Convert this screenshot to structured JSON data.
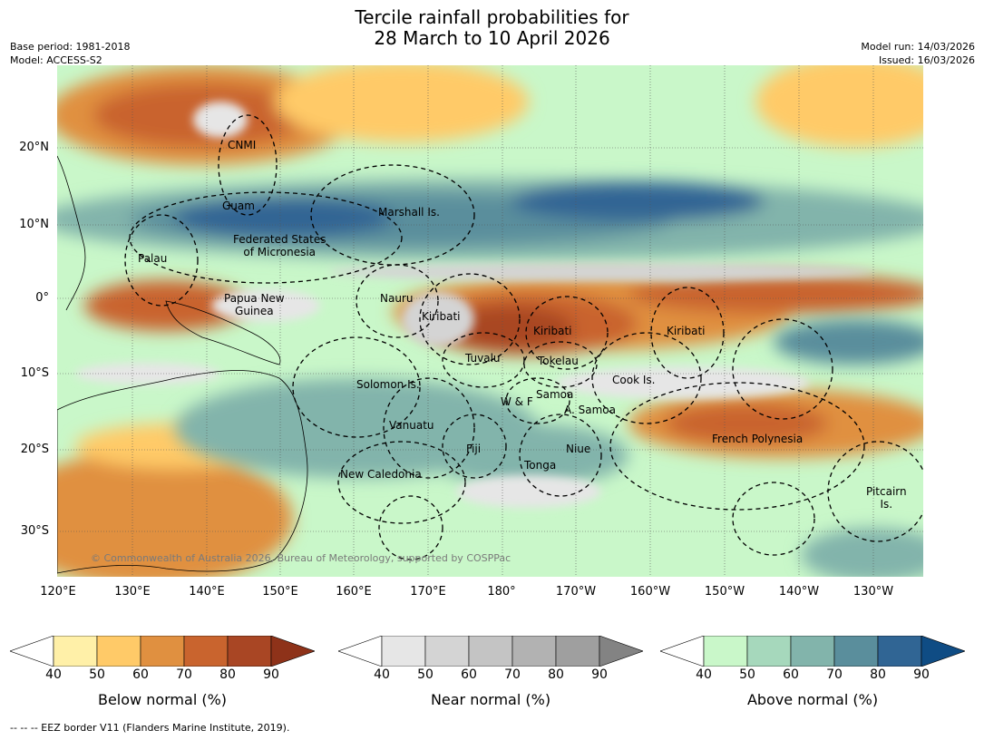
{
  "title": {
    "line1": "Tercile rainfall probabilities for",
    "line2": "28 March to 10 April 2026"
  },
  "meta": {
    "base_period": "Base period: 1981-2018",
    "model": "Model: ACCESS-S2",
    "model_run": "Model run: 14/03/2026",
    "issued": "Issued: 16/03/2026"
  },
  "axes": {
    "lat_ticks": [
      "20°N",
      "10°N",
      "0°",
      "10°S",
      "20°S",
      "30°S"
    ],
    "lon_ticks": [
      "120°E",
      "130°E",
      "140°E",
      "150°E",
      "160°E",
      "170°E",
      "180°",
      "170°W",
      "160°W",
      "150°W",
      "140°W",
      "130°W"
    ]
  },
  "map_labels": [
    "CNMI",
    "Guam",
    "Marshall Is.",
    "Federated States\nof Micronesia",
    "Palau",
    "Papua New\nGuinea",
    "Nauru",
    "Kiribati",
    "Kiribati",
    "Kiribati",
    "Tuvalu",
    "Tokelau",
    "Cook Is.",
    "Solomon Is.",
    "Samoa",
    "W & F",
    "A. Samoa",
    "Vanuatu",
    "Fiji",
    "Niue",
    "Tonga",
    "French Polynesia",
    "New Caledonia",
    "Pitcairn\nIs."
  ],
  "credit": "© Commonwealth of Australia 2026, Bureau of Meteorology, supported by COSPPac",
  "colorbars": [
    {
      "label": "Below normal (%)",
      "colors": [
        "#ffffff",
        "#fff0a8",
        "#ffca68",
        "#e09040",
        "#c9642e",
        "#a94624",
        "#8e3219"
      ],
      "ticks": [
        "40",
        "50",
        "60",
        "70",
        "80",
        "90"
      ]
    },
    {
      "label": "Near normal (%)",
      "colors": [
        "#ffffff",
        "#e6e6e6",
        "#d4d4d4",
        "#c4c4c4",
        "#b2b2b2",
        "#9f9f9f",
        "#838383"
      ],
      "ticks": [
        "40",
        "50",
        "60",
        "70",
        "80",
        "90"
      ]
    },
    {
      "label": "Above normal (%)",
      "colors": [
        "#ffffff",
        "#c9f7c9",
        "#a6d8bc",
        "#82b4ab",
        "#5a8e9c",
        "#306594",
        "#0f4c84"
      ],
      "ticks": [
        "40",
        "50",
        "60",
        "70",
        "80",
        "90"
      ]
    }
  ],
  "footnote": "--  --  -- EEZ border V11 (Flanders Marine Institute, 2019).",
  "map_colors": {
    "land": "#ffffff",
    "coast": "#000000"
  }
}
